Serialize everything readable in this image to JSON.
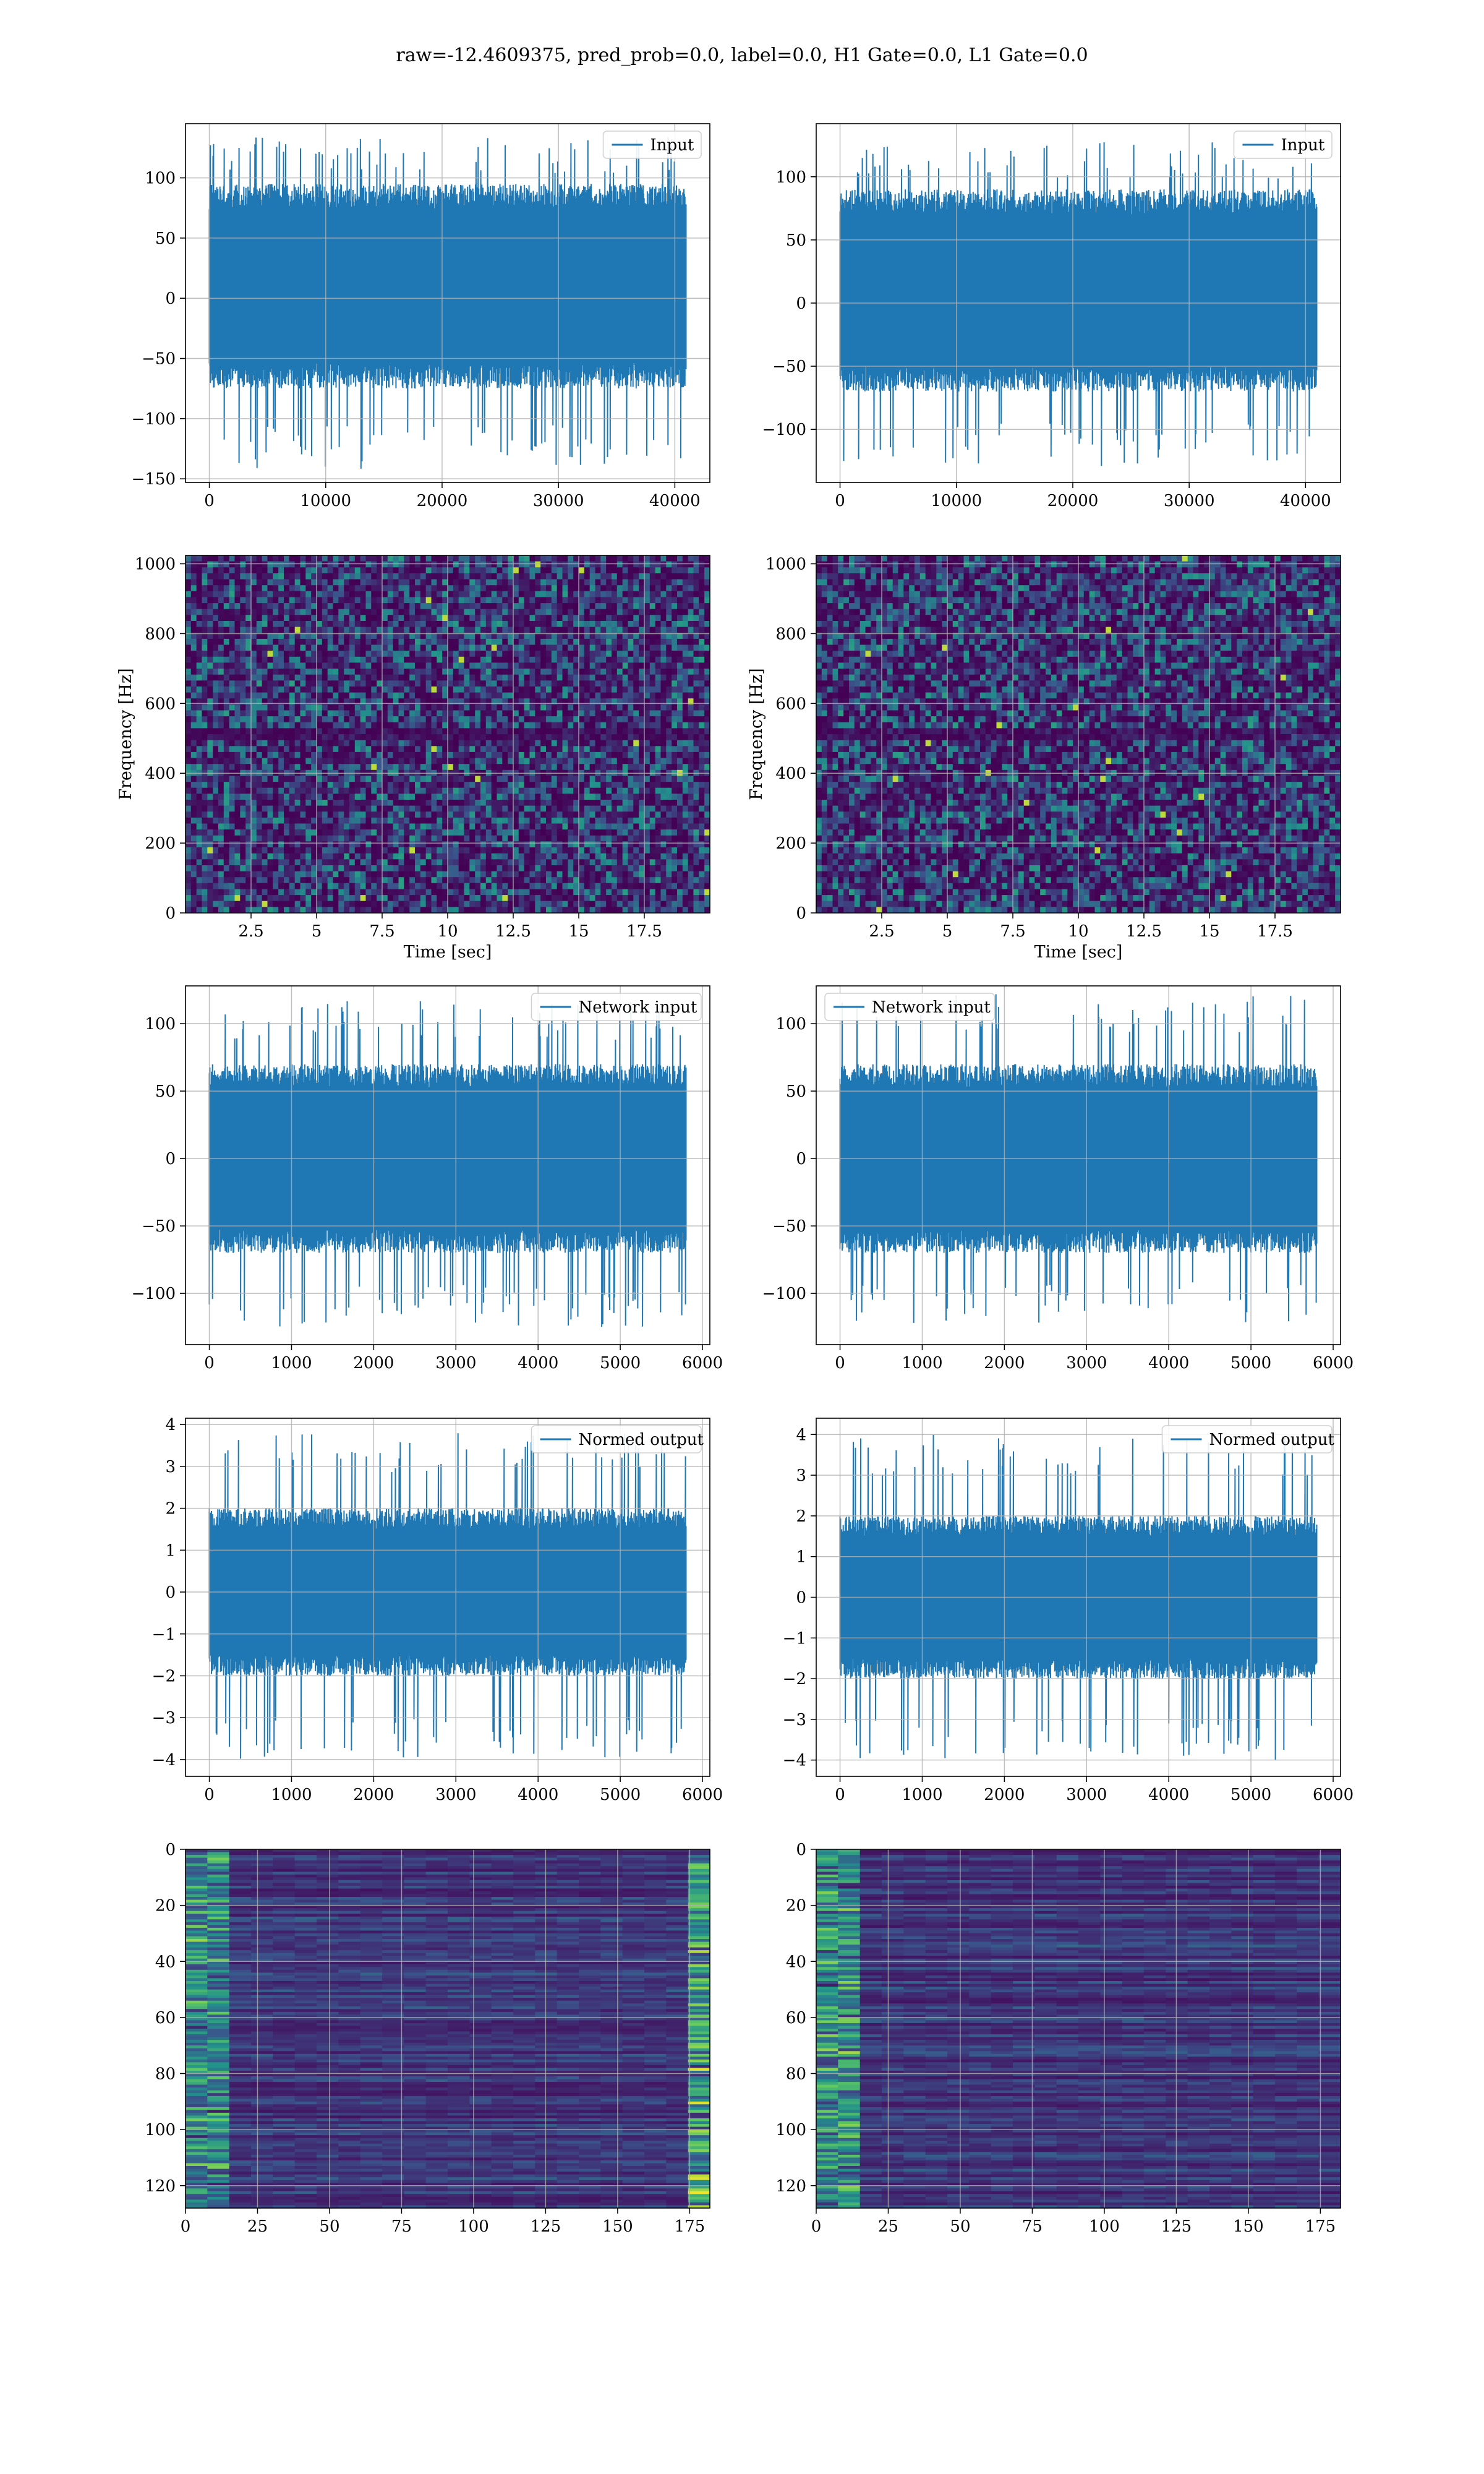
{
  "title": "raw=-12.4609375, pred_prob=0.0, label=0.0, H1 Gate=0.0, L1 Gate=0.0",
  "colors": {
    "line": "#1f77b4",
    "grid": "#b0b0b0",
    "viridis_dark": "#440154",
    "viridis_mid": "#21918c",
    "viridis_bright": "#fde725"
  },
  "chart_data": [
    {
      "id": "input-left",
      "type": "line",
      "legend": "Input",
      "legend_loc": "upper right",
      "grid": true,
      "xlim": [
        -2048,
        43008
      ],
      "ylim": [
        -153,
        145
      ],
      "xticks": [
        0,
        10000,
        20000,
        30000,
        40000
      ],
      "yticks": [
        -150,
        -100,
        -50,
        0,
        50,
        100
      ],
      "series": [
        {
          "name": "Input",
          "n_points": 40960,
          "approx_band": [
            -75,
            95
          ],
          "max": 135,
          "min": -142
        }
      ]
    },
    {
      "id": "input-right",
      "type": "line",
      "legend": "Input",
      "legend_loc": "upper right",
      "grid": true,
      "xlim": [
        -2048,
        43008
      ],
      "ylim": [
        -142,
        142
      ],
      "xticks": [
        0,
        10000,
        20000,
        30000,
        40000
      ],
      "yticks": [
        -100,
        -50,
        0,
        50,
        100
      ],
      "series": [
        {
          "name": "Input",
          "n_points": 40960,
          "approx_band": [
            -70,
            90
          ],
          "max": 128,
          "min": -130
        }
      ]
    },
    {
      "id": "spectrogram-left",
      "type": "heatmap",
      "colormap": "viridis",
      "grid": true,
      "xlabel": "Time [sec]",
      "ylabel": "Frequency [Hz]",
      "xlim": [
        0,
        20
      ],
      "ylim": [
        0,
        1024
      ],
      "xticks": [
        2.5,
        5.0,
        7.5,
        10.0,
        12.5,
        15.0,
        17.5
      ],
      "yticks": [
        0,
        200,
        400,
        600,
        800,
        1000
      ]
    },
    {
      "id": "spectrogram-right",
      "type": "heatmap",
      "colormap": "viridis",
      "grid": true,
      "xlabel": "Time [sec]",
      "ylabel": "Frequency [Hz]",
      "xlim": [
        0,
        20
      ],
      "ylim": [
        0,
        1024
      ],
      "xticks": [
        2.5,
        5.0,
        7.5,
        10.0,
        12.5,
        15.0,
        17.5
      ],
      "yticks": [
        0,
        200,
        400,
        600,
        800,
        1000
      ]
    },
    {
      "id": "network-input-left",
      "type": "line",
      "legend": "Network input",
      "legend_loc": "upper right",
      "grid": true,
      "xlim": [
        -290,
        6090
      ],
      "ylim": [
        -138,
        128
      ],
      "xticks": [
        0,
        1000,
        2000,
        3000,
        4000,
        5000,
        6000
      ],
      "yticks": [
        -100,
        -50,
        0,
        50,
        100
      ],
      "series": [
        {
          "name": "Network input",
          "n_points": 5800,
          "approx_band": [
            -70,
            70
          ],
          "max": 117,
          "min": -125
        }
      ]
    },
    {
      "id": "network-input-right",
      "type": "line",
      "legend": "Network input",
      "legend_loc": "upper left",
      "grid": true,
      "xlim": [
        -290,
        6090
      ],
      "ylim": [
        -138,
        128
      ],
      "xticks": [
        0,
        1000,
        2000,
        3000,
        4000,
        5000,
        6000
      ],
      "yticks": [
        -100,
        -50,
        0,
        50,
        100
      ],
      "series": [
        {
          "name": "Network input",
          "n_points": 5800,
          "approx_band": [
            -70,
            70
          ],
          "max": 122,
          "min": -122
        }
      ]
    },
    {
      "id": "normed-output-left",
      "type": "line",
      "legend": "Normed output",
      "legend_loc": "upper right",
      "grid": true,
      "xlim": [
        -290,
        6090
      ],
      "ylim": [
        -4.4,
        4.15
      ],
      "xticks": [
        0,
        1000,
        2000,
        3000,
        4000,
        5000,
        6000
      ],
      "yticks": [
        -4,
        -3,
        -2,
        -1,
        0,
        1,
        2,
        3,
        4
      ],
      "series": [
        {
          "name": "Normed output",
          "n_points": 5800,
          "approx_band": [
            -2,
            2
          ],
          "max": 3.8,
          "min": -4.0
        }
      ]
    },
    {
      "id": "normed-output-right",
      "type": "line",
      "legend": "Normed output",
      "legend_loc": "upper right",
      "grid": true,
      "xlim": [
        -290,
        6090
      ],
      "ylim": [
        -4.4,
        4.4
      ],
      "xticks": [
        0,
        1000,
        2000,
        3000,
        4000,
        5000,
        6000
      ],
      "yticks": [
        -4,
        -3,
        -2,
        -1,
        0,
        1,
        2,
        3,
        4
      ],
      "series": [
        {
          "name": "Normed output",
          "n_points": 5800,
          "approx_band": [
            -2,
            2
          ],
          "max": 4.0,
          "min": -4.0
        }
      ]
    },
    {
      "id": "features-left",
      "type": "heatmap",
      "colormap": "viridis",
      "grid": true,
      "xlim": [
        0,
        182
      ],
      "ylim": [
        128,
        0
      ],
      "xticks": [
        0,
        25,
        50,
        75,
        100,
        125,
        150,
        175
      ],
      "yticks": [
        0,
        20,
        40,
        60,
        80,
        100,
        120
      ]
    },
    {
      "id": "features-right",
      "type": "heatmap",
      "colormap": "viridis",
      "grid": true,
      "xlim": [
        0,
        182
      ],
      "ylim": [
        128,
        0
      ],
      "xticks": [
        0,
        25,
        50,
        75,
        100,
        125,
        150,
        175
      ],
      "yticks": [
        0,
        20,
        40,
        60,
        80,
        100,
        120
      ]
    }
  ]
}
